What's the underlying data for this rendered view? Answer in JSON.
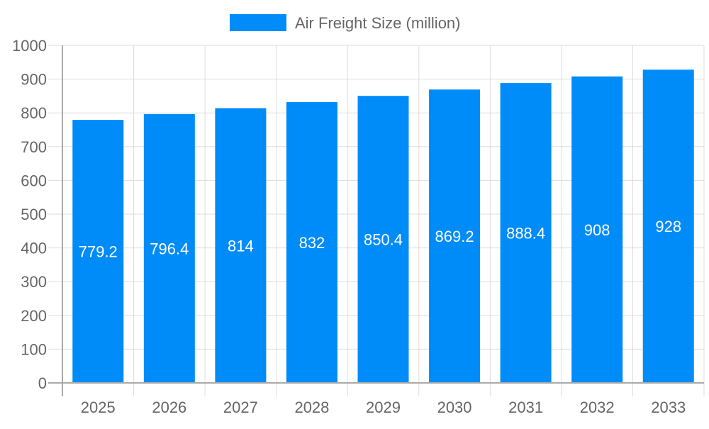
{
  "chart_data": {
    "type": "bar",
    "title": "",
    "xlabel": "",
    "ylabel": "",
    "categories": [
      "2025",
      "2026",
      "2027",
      "2028",
      "2029",
      "2030",
      "2031",
      "2032",
      "2033"
    ],
    "series": [
      {
        "name": "Air Freight Size (million)",
        "values": [
          779.2,
          796.4,
          814,
          832,
          850.4,
          869.2,
          888.4,
          908,
          928
        ],
        "color": "#008cf8"
      }
    ],
    "data_labels": [
      "779.2",
      "796.4",
      "814",
      "832",
      "850.4",
      "869.2",
      "888.4",
      "908",
      "928"
    ],
    "ylim": [
      0,
      1000
    ],
    "yticks": [
      "0",
      "100",
      "200",
      "300",
      "400",
      "500",
      "600",
      "700",
      "800",
      "900",
      "1000"
    ],
    "grid": true,
    "legend": "top-center"
  }
}
